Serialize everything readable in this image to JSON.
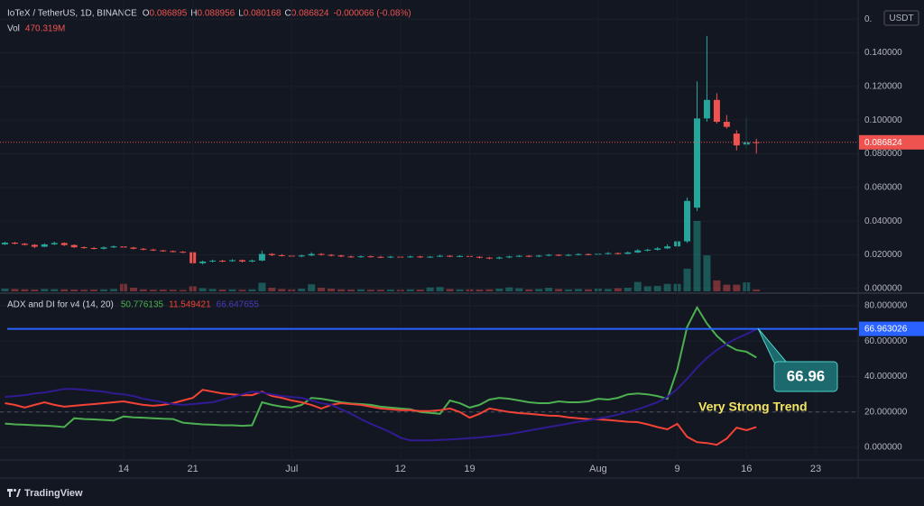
{
  "header": {
    "symbol": "IoTeX / TetherUS, 1D, BINANCE",
    "labels": [
      "O",
      "H",
      "L",
      "C"
    ],
    "change": "-0.000066 (-0.08%)"
  },
  "chart_data": [
    {
      "type": "candlestick",
      "up_color": "#26a69a",
      "down_color": "#ef5350",
      "open": [
        0.0262,
        0.0272,
        0.0266,
        0.0259,
        0.0248,
        0.0262,
        0.027,
        0.0258,
        0.0245,
        0.024,
        0.0236,
        0.0244,
        0.025,
        0.0243,
        0.0236,
        0.0231,
        0.0226,
        0.0222,
        0.0218,
        0.0215,
        0.015,
        0.016,
        0.0165,
        0.0162,
        0.0168,
        0.016,
        0.0166,
        0.0205,
        0.0198,
        0.0195,
        0.019,
        0.0196,
        0.0205,
        0.02,
        0.0196,
        0.019,
        0.0186,
        0.0191,
        0.0188,
        0.0184,
        0.0189,
        0.0186,
        0.019,
        0.0185,
        0.0189,
        0.0194,
        0.019,
        0.0193,
        0.0188,
        0.0183,
        0.0178,
        0.0184,
        0.019,
        0.0194,
        0.019,
        0.0195,
        0.02,
        0.0196,
        0.02,
        0.0204,
        0.0201,
        0.0206,
        0.021,
        0.0206,
        0.0214,
        0.0226,
        0.023,
        0.0238,
        0.025,
        0.028,
        0.048,
        0.101,
        0.112,
        0.099,
        0.092,
        0.0855,
        0.086895
      ],
      "high": [
        0.0278,
        0.0276,
        0.027,
        0.0263,
        0.0268,
        0.0278,
        0.0274,
        0.0262,
        0.025,
        0.0246,
        0.025,
        0.0256,
        0.0254,
        0.0247,
        0.024,
        0.0236,
        0.023,
        0.0226,
        0.0222,
        0.0218,
        0.0166,
        0.0172,
        0.017,
        0.0174,
        0.0172,
        0.0172,
        0.0225,
        0.021,
        0.0204,
        0.02,
        0.0202,
        0.0215,
        0.021,
        0.0204,
        0.02,
        0.0195,
        0.0196,
        0.0196,
        0.0193,
        0.0194,
        0.0193,
        0.0195,
        0.0194,
        0.0193,
        0.02,
        0.0198,
        0.0198,
        0.0197,
        0.0192,
        0.0188,
        0.019,
        0.0195,
        0.0199,
        0.0198,
        0.02,
        0.0205,
        0.0204,
        0.0205,
        0.0209,
        0.0208,
        0.0211,
        0.0216,
        0.0214,
        0.022,
        0.0234,
        0.0236,
        0.0246,
        0.0262,
        0.0285,
        0.054,
        0.123,
        0.15,
        0.116,
        0.103,
        0.094,
        0.102,
        0.088956
      ],
      "low": [
        0.0258,
        0.0262,
        0.0255,
        0.024,
        0.0245,
        0.0258,
        0.0252,
        0.024,
        0.0236,
        0.0232,
        0.0232,
        0.024,
        0.0238,
        0.0232,
        0.0226,
        0.0222,
        0.0218,
        0.0214,
        0.021,
        0.014,
        0.0142,
        0.0155,
        0.0156,
        0.0158,
        0.0155,
        0.0156,
        0.0162,
        0.0192,
        0.019,
        0.0185,
        0.0186,
        0.0192,
        0.0195,
        0.019,
        0.0186,
        0.0182,
        0.0182,
        0.0184,
        0.018,
        0.018,
        0.0182,
        0.0182,
        0.0181,
        0.0181,
        0.0186,
        0.0186,
        0.0186,
        0.0184,
        0.0178,
        0.0174,
        0.0174,
        0.018,
        0.0186,
        0.0186,
        0.0186,
        0.0191,
        0.0192,
        0.0192,
        0.0196,
        0.0197,
        0.0197,
        0.0202,
        0.0202,
        0.0203,
        0.021,
        0.022,
        0.0225,
        0.0234,
        0.0245,
        0.027,
        0.046,
        0.099,
        0.098,
        0.095,
        0.082,
        0.083,
        0.080168
      ],
      "close": [
        0.0272,
        0.0266,
        0.0259,
        0.0248,
        0.0262,
        0.027,
        0.0258,
        0.0245,
        0.024,
        0.0236,
        0.0244,
        0.025,
        0.0243,
        0.0236,
        0.0231,
        0.0226,
        0.0222,
        0.0218,
        0.0215,
        0.015,
        0.016,
        0.0165,
        0.0162,
        0.0168,
        0.016,
        0.0166,
        0.0205,
        0.0198,
        0.0195,
        0.019,
        0.0196,
        0.0205,
        0.02,
        0.0196,
        0.019,
        0.0186,
        0.0191,
        0.0188,
        0.0184,
        0.0189,
        0.0186,
        0.019,
        0.0185,
        0.0189,
        0.0194,
        0.019,
        0.0193,
        0.0188,
        0.0183,
        0.0178,
        0.0184,
        0.019,
        0.0194,
        0.019,
        0.0195,
        0.02,
        0.0196,
        0.02,
        0.0204,
        0.0201,
        0.0206,
        0.021,
        0.0206,
        0.0214,
        0.0226,
        0.023,
        0.0238,
        0.025,
        0.028,
        0.052,
        0.101,
        0.112,
        0.099,
        0.096,
        0.085,
        0.0869,
        0.086824
      ],
      "volume": {
        "name": "Vol",
        "last_label": "470.319M",
        "values": [
          700,
          600,
          500,
          450,
          600,
          550,
          500,
          450,
          400,
          450,
          500,
          600,
          1900,
          900,
          500,
          400,
          450,
          400,
          350,
          1300,
          800,
          600,
          450,
          500,
          400,
          500,
          2200,
          900,
          600,
          500,
          700,
          1800,
          900,
          700,
          500,
          450,
          500,
          400,
          400,
          450,
          400,
          500,
          450,
          1000,
          1100,
          600,
          500,
          500,
          450,
          500,
          700,
          1000,
          800,
          500,
          600,
          900,
          600,
          500,
          600,
          500,
          700,
          600,
          800,
          900,
          2400,
          1300,
          1400,
          1900,
          1900,
          5800,
          18000,
          9200,
          2800,
          1700,
          1700,
          2300,
          470.319
        ]
      },
      "xlim": [
        -0.5,
        86.2
      ],
      "ylim": [
        -0.0017,
        0.166
      ],
      "currency": "USDT",
      "grid": true,
      "yticks": [
        {
          "value": 0,
          "label": "0.000000"
        },
        {
          "value": 0.02,
          "label": "0.020000"
        },
        {
          "value": 0.04,
          "label": "0.040000"
        },
        {
          "value": 0.06,
          "label": "0.060000"
        },
        {
          "value": 0.08,
          "label": "0.080000"
        },
        {
          "value": 0.1,
          "label": "0.100000"
        },
        {
          "value": 0.12,
          "label": "0.120000"
        },
        {
          "value": 0.14,
          "label": "0.140000"
        },
        {
          "value": 0.16,
          "label": "0."
        }
      ]
    },
    {
      "type": "line",
      "title": "ADX and DI for v4 (14, 20)",
      "grid": true,
      "series": [
        {
          "color": "#4caf50",
          "values": [
            13.5,
            13,
            12.8,
            12.5,
            12.3,
            12,
            11.5,
            16.5,
            16,
            15.8,
            15.5,
            15.2,
            17.5,
            17,
            16.8,
            16.5,
            16.2,
            16,
            14,
            13.5,
            13,
            12.8,
            12.5,
            12.5,
            12.2,
            12.5,
            25.5,
            24,
            23,
            22.5,
            24,
            28,
            27.5,
            26.5,
            25.5,
            24.8,
            24.5,
            24,
            23,
            22.5,
            22,
            21.5,
            20,
            19.5,
            19,
            26.5,
            25,
            22.5,
            24,
            27,
            28,
            27.5,
            26.5,
            25.5,
            25,
            25,
            26,
            25.5,
            25.5,
            26,
            27.5,
            27,
            28,
            30,
            30.5,
            30,
            29,
            27.5,
            44,
            68,
            79,
            70,
            63,
            58,
            55,
            54,
            50.776135
          ]
        },
        {
          "color": "#f44336",
          "values": [
            25,
            24,
            22.5,
            24,
            25.5,
            24,
            23,
            23.5,
            24,
            24.5,
            25,
            25.5,
            26,
            25,
            24,
            23.5,
            24,
            25,
            26.5,
            28,
            32.5,
            31.5,
            30.5,
            30,
            29.5,
            29.5,
            31.5,
            29,
            28,
            26.5,
            25.5,
            24,
            22,
            24,
            25,
            24.5,
            24,
            23,
            22,
            21.5,
            21,
            21,
            20.5,
            20.5,
            21,
            22,
            20,
            16.8,
            19,
            22,
            21,
            20,
            19.4,
            19,
            18.5,
            18,
            17.8,
            17,
            16.5,
            16,
            15.8,
            15.5,
            15,
            14.5,
            14.3,
            13,
            11.5,
            10.2,
            13.3,
            6,
            3,
            2.5,
            1.5,
            5,
            11.2,
            9.7,
            11.549421
          ]
        },
        {
          "color": "#311b92",
          "values": [
            28.5,
            29,
            29.5,
            30.5,
            31,
            32,
            33,
            33,
            32.5,
            32,
            31.5,
            30.5,
            30,
            29,
            27.5,
            26.5,
            25.5,
            24.5,
            24,
            24.5,
            25,
            25.5,
            27,
            28.5,
            30,
            31.5,
            31,
            30,
            29,
            28.5,
            28,
            26.5,
            25,
            24,
            21.5,
            19,
            16,
            13.3,
            11,
            8.5,
            5.5,
            4,
            4,
            4,
            4.2,
            4.5,
            4.8,
            5.2,
            5.6,
            6.2,
            6.8,
            7.5,
            8.5,
            9.5,
            10.5,
            11.5,
            12.5,
            13.5,
            14.5,
            15.3,
            16.3,
            17.3,
            18.5,
            20,
            21.5,
            23.5,
            25.5,
            28.5,
            33,
            38.8,
            45,
            50.5,
            55,
            58.5,
            61.5,
            64,
            66.647655
          ]
        }
      ],
      "hline": {
        "value": 66.963026,
        "color": "#2962ff"
      },
      "level": 20,
      "annotations": [
        "66.96",
        "Very Strong Trend"
      ],
      "xlim": [
        -0.5,
        86.2
      ],
      "ylim": [
        -7.1,
        86.1
      ],
      "yticks": [
        {
          "value": 0,
          "label": "0.000000"
        },
        {
          "value": 20,
          "label": "20.000000"
        },
        {
          "value": 40,
          "label": "40.000000"
        },
        {
          "value": 60,
          "label": "60.000000"
        },
        {
          "value": 80,
          "label": "80.000000"
        }
      ],
      "xticks": [
        {
          "value": 12,
          "label": "14"
        },
        {
          "value": 19,
          "label": "21"
        },
        {
          "value": 29,
          "label": "Jul"
        },
        {
          "value": 40,
          "label": "12"
        },
        {
          "value": 47,
          "label": "19"
        },
        {
          "value": 60,
          "label": "Aug"
        },
        {
          "value": 68,
          "label": "9"
        },
        {
          "value": 75,
          "label": "16"
        },
        {
          "value": 82,
          "label": "23"
        }
      ]
    }
  ],
  "footer": {
    "brand": "TradingView"
  }
}
